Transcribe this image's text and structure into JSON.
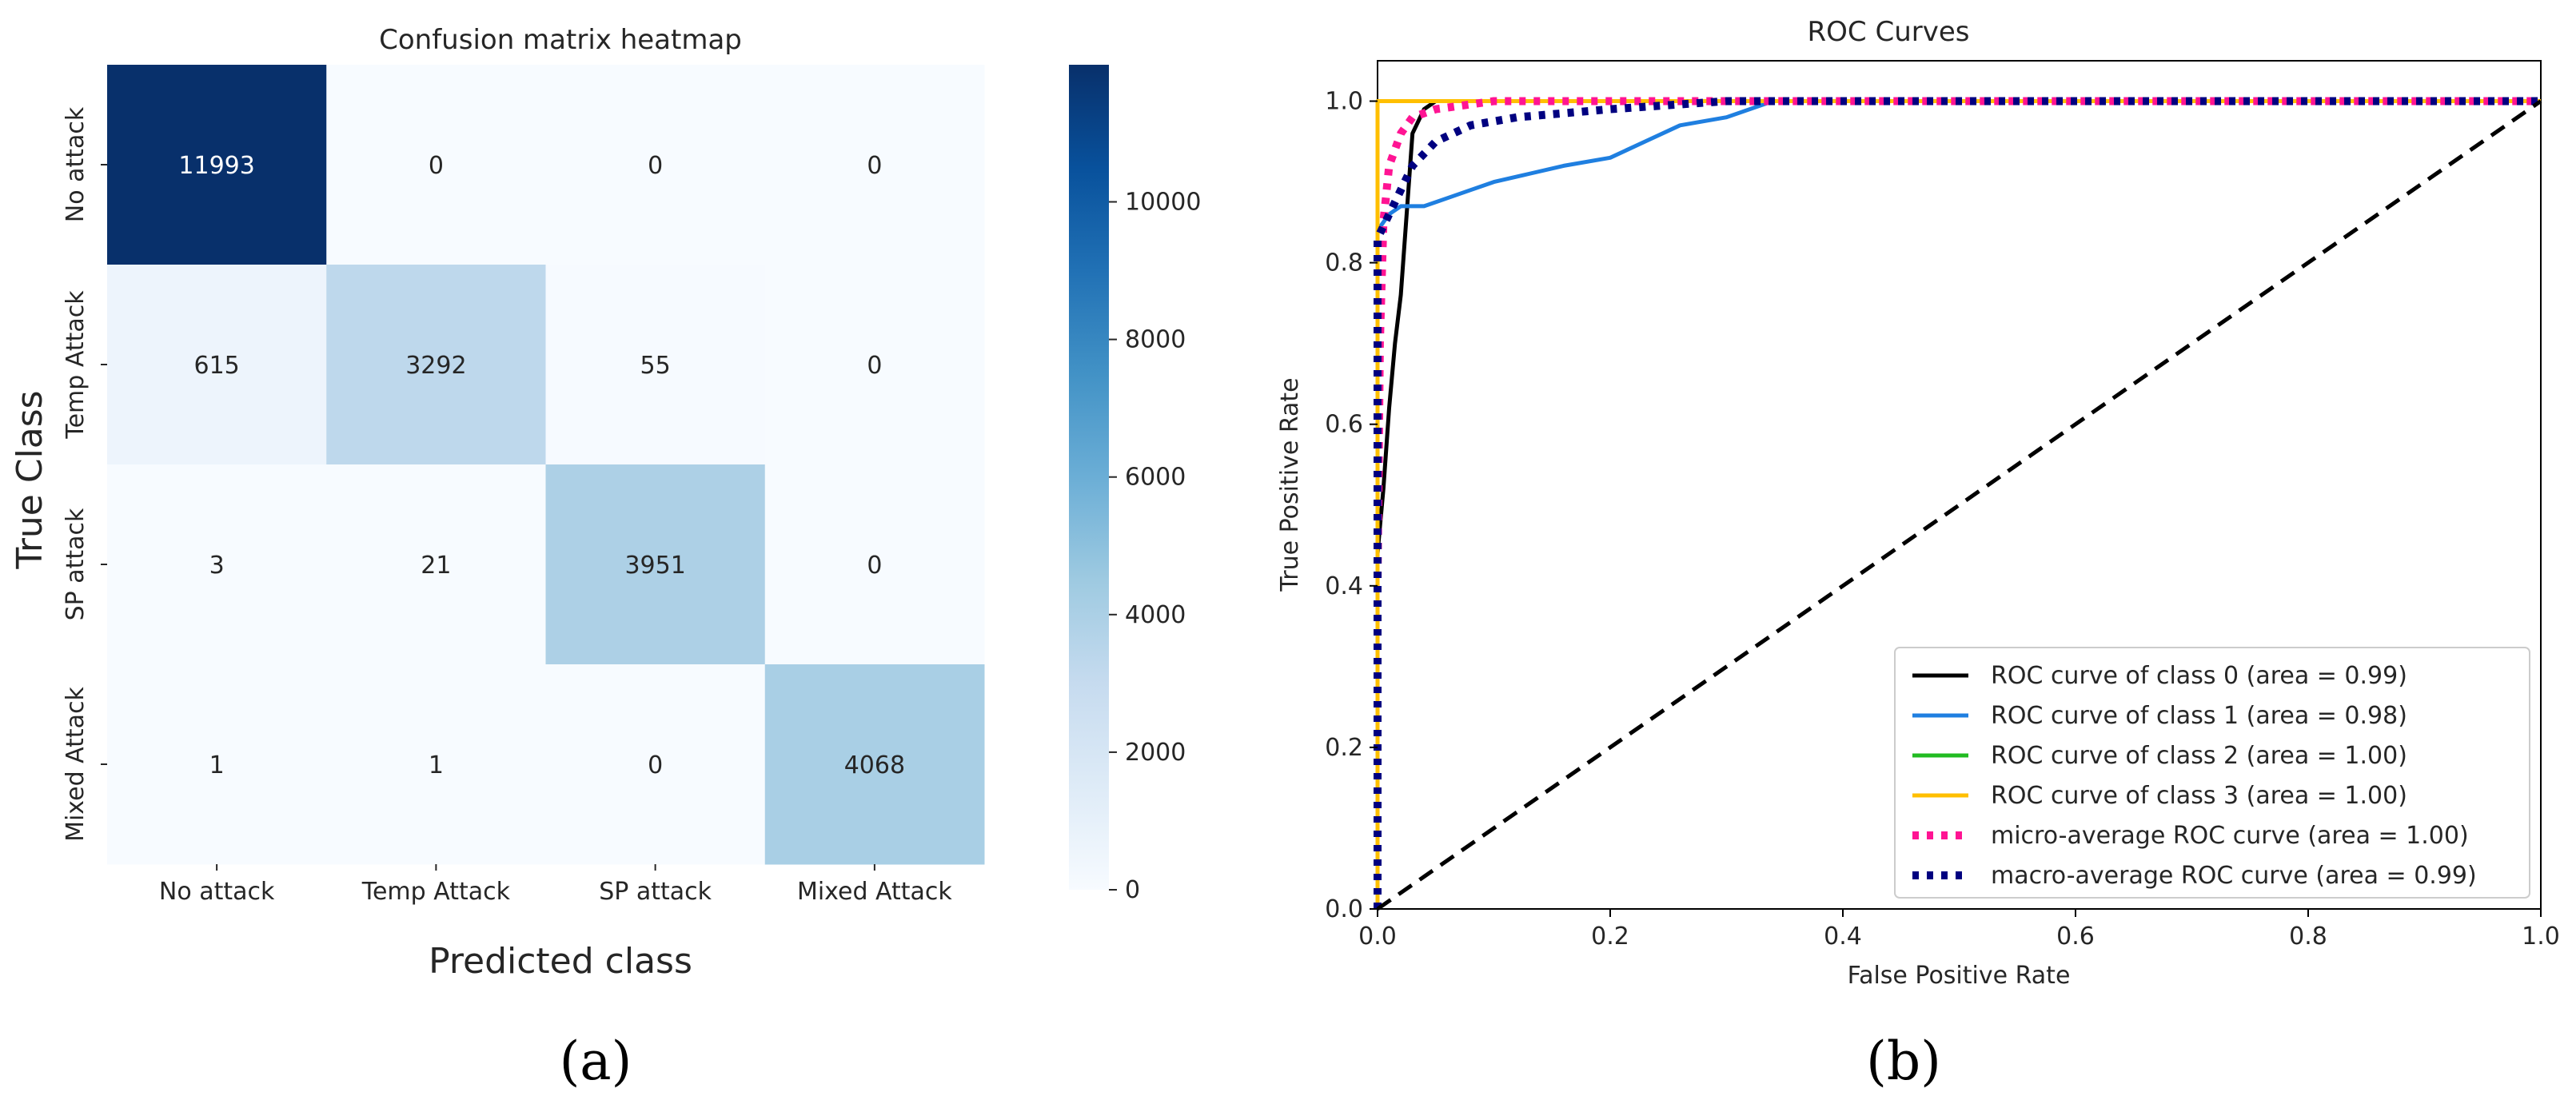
{
  "panels": {
    "a": "(a)",
    "b": "(b)"
  },
  "chart_data": [
    {
      "type": "heatmap",
      "title": "Confusion matrix heatmap",
      "xlabel": "Predicted class",
      "ylabel": "True Class",
      "x_categories": [
        "No attack",
        "Temp Attack",
        "SP attack",
        "Mixed Attack"
      ],
      "y_categories": [
        "No attack",
        "Temp Attack",
        "SP attack",
        "Mixed Attack"
      ],
      "values": [
        [
          11993,
          0,
          0,
          0
        ],
        [
          615,
          3292,
          55,
          0
        ],
        [
          3,
          21,
          3951,
          0
        ],
        [
          1,
          1,
          0,
          4068
        ]
      ],
      "colorbar": {
        "range": [
          0,
          11993
        ],
        "ticks": [
          0,
          2000,
          4000,
          6000,
          8000,
          10000
        ]
      },
      "colormap": "Blues"
    },
    {
      "type": "line",
      "title": "ROC Curves",
      "xlabel": "False Positive Rate",
      "ylabel": "True Positive Rate",
      "xlim": [
        0,
        1.0
      ],
      "ylim": [
        0,
        1.05
      ],
      "xticks": [
        "0.0",
        "0.2",
        "0.4",
        "0.6",
        "0.8",
        "1.0"
      ],
      "yticks": [
        "0.0",
        "0.2",
        "0.4",
        "0.6",
        "0.8",
        "1.0"
      ],
      "grid": false,
      "legend_position": "lower-right",
      "series": [
        {
          "name": "ROC curve of class 0 (area = 0.99)",
          "color": "#000000",
          "style": "solid",
          "x": [
            0,
            0,
            0.005,
            0.01,
            0.015,
            0.02,
            0.025,
            0.03,
            0.04,
            0.05,
            0.1,
            1.0
          ],
          "y": [
            0,
            0.44,
            0.52,
            0.62,
            0.7,
            0.76,
            0.86,
            0.96,
            0.99,
            1.0,
            1.0,
            1.0
          ]
        },
        {
          "name": "ROC curve of class 1 (area = 0.98)",
          "color": "#1f7fe0",
          "style": "solid",
          "x": [
            0,
            0,
            0.01,
            0.02,
            0.04,
            0.06,
            0.08,
            0.1,
            0.13,
            0.16,
            0.2,
            0.23,
            0.26,
            0.3,
            0.34,
            0.4,
            1.0
          ],
          "y": [
            0,
            0.84,
            0.86,
            0.87,
            0.87,
            0.88,
            0.89,
            0.9,
            0.91,
            0.92,
            0.93,
            0.95,
            0.97,
            0.98,
            1.0,
            1.0,
            1.0
          ]
        },
        {
          "name": "ROC curve of class 2 (area = 1.00)",
          "color": "#22bb22",
          "style": "solid",
          "x": [
            0,
            0,
            1.0
          ],
          "y": [
            0,
            1.0,
            1.0
          ]
        },
        {
          "name": "ROC curve of class 3 (area = 1.00)",
          "color": "#ffbf00",
          "style": "solid",
          "x": [
            0,
            0,
            1.0
          ],
          "y": [
            0,
            1.0,
            1.0
          ]
        },
        {
          "name": "micro-average ROC curve (area = 1.00)",
          "color": "#ff1493",
          "style": "dotted",
          "x": [
            0,
            0,
            0.002,
            0.005,
            0.01,
            0.02,
            0.03,
            0.05,
            0.1,
            1.0
          ],
          "y": [
            0,
            0.4,
            0.7,
            0.85,
            0.92,
            0.96,
            0.98,
            0.99,
            1.0,
            1.0
          ]
        },
        {
          "name": "macro-average ROC curve (area = 0.99)",
          "color": "#000080",
          "style": "dotted",
          "x": [
            0,
            0,
            0.01,
            0.02,
            0.03,
            0.05,
            0.08,
            0.12,
            0.2,
            0.3,
            0.35,
            1.0
          ],
          "y": [
            0,
            0.83,
            0.86,
            0.89,
            0.92,
            0.95,
            0.97,
            0.98,
            0.99,
            1.0,
            1.0,
            1.0
          ]
        },
        {
          "name": "",
          "color": "#000000",
          "style": "dashed",
          "x": [
            0,
            1.0
          ],
          "y": [
            0,
            1.0
          ]
        }
      ]
    }
  ]
}
